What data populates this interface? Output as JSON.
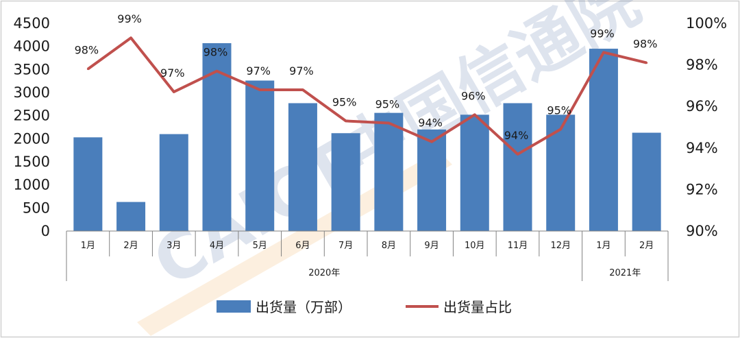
{
  "chart_data": {
    "type": "bar+line",
    "title": "",
    "categories": [
      "1月",
      "2月",
      "3月",
      "4月",
      "5月",
      "6月",
      "7月",
      "8月",
      "9月",
      "10月",
      "11月",
      "12月",
      "1月",
      "2月"
    ],
    "year_groups": [
      {
        "label": "2020年",
        "count": 12
      },
      {
        "label": "2021年",
        "count": 2
      }
    ],
    "series": [
      {
        "name": "出货量（万部）",
        "type": "bar",
        "axis": "left",
        "color": "#4a7ebb",
        "values": [
          2030,
          630,
          2100,
          4070,
          3260,
          2770,
          2120,
          2560,
          2200,
          2520,
          2770,
          2520,
          3950,
          2130
        ]
      },
      {
        "name": "出货量占比",
        "type": "line",
        "axis": "right",
        "color": "#c0504d",
        "values": [
          97.8,
          99.3,
          96.7,
          97.7,
          96.8,
          96.8,
          95.3,
          95.2,
          94.3,
          95.6,
          93.7,
          94.9,
          98.6,
          98.1
        ],
        "labels": [
          "98%",
          "99%",
          "97%",
          "98%",
          "97%",
          "97%",
          "95%",
          "95%",
          "94%",
          "96%",
          "94%",
          "95%",
          "99%",
          "98%"
        ]
      }
    ],
    "y_left": {
      "min": 0,
      "max": 4500,
      "ticks": [
        "0",
        "500",
        "1000",
        "1500",
        "2000",
        "2500",
        "3000",
        "3500",
        "4000",
        "4500"
      ]
    },
    "y_right": {
      "min": 90,
      "max": 100,
      "ticks": [
        "90%",
        "92%",
        "94%",
        "96%",
        "98%",
        "100%"
      ]
    },
    "grid": false,
    "legend_position": "bottom"
  },
  "watermark": "CAICT中国信通院"
}
